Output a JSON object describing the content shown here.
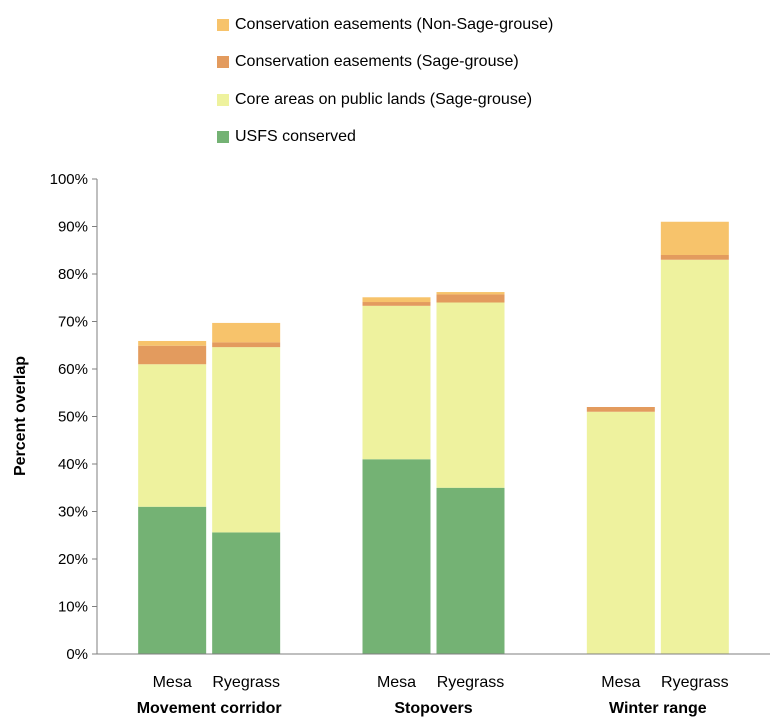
{
  "chart_data": {
    "type": "bar",
    "stacked": true,
    "ylabel": "Percent overlap",
    "ylim": [
      0,
      100
    ],
    "yticks": [
      0,
      10,
      20,
      30,
      40,
      50,
      60,
      70,
      80,
      90,
      100
    ],
    "ytick_suffix": "%",
    "grid": false,
    "legend_position": "top",
    "groups": [
      {
        "label": "Movement corridor",
        "categories": [
          "Mesa",
          "Ryegrass"
        ]
      },
      {
        "label": "Stopovers",
        "categories": [
          "Mesa",
          "Ryegrass"
        ]
      },
      {
        "label": "Winter range",
        "categories": [
          "Mesa",
          "Ryegrass"
        ]
      }
    ],
    "series": [
      {
        "name": "USFS conserved",
        "color": "#74b274",
        "values": [
          31,
          25.6,
          41,
          35,
          0,
          0
        ]
      },
      {
        "name": "Core areas on public lands (Sage-grouse)",
        "color": "#eef29e",
        "values": [
          30,
          39,
          32.3,
          39,
          51,
          83
        ]
      },
      {
        "name": "Conservation easements (Sage-grouse)",
        "color": "#e39b5e",
        "values": [
          3.9,
          1,
          0.8,
          1.7,
          1,
          1
        ]
      },
      {
        "name": "Conservation easements (Non-Sage-grouse)",
        "color": "#f7c36b",
        "values": [
          1,
          4.1,
          1,
          0.5,
          0,
          7
        ]
      }
    ]
  }
}
